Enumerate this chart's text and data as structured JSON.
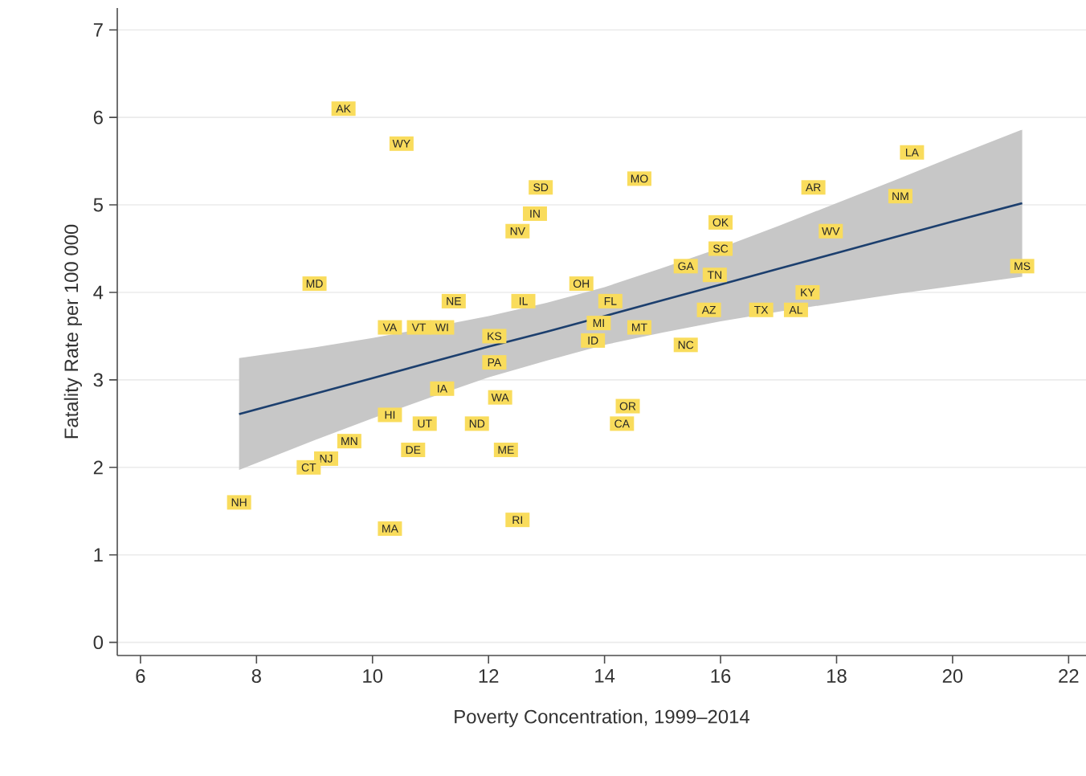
{
  "chart_data": {
    "type": "scatter",
    "xlabel": "Poverty Concentration, 1999–2014",
    "ylabel": "Fatality Rate per 100 000",
    "xlim": [
      5.6,
      22.3
    ],
    "xticks": [
      6,
      8,
      10,
      12,
      14,
      16,
      18,
      20,
      22
    ],
    "ylim": [
      -0.15,
      7.25
    ],
    "yticks": [
      0,
      1,
      2,
      3,
      4,
      5,
      6,
      7
    ],
    "grid": "y",
    "series": [
      {
        "color": "#f9dc5c",
        "x": [
          9.5,
          10.5,
          12.9,
          12.8,
          12.5,
          9.0,
          11.4,
          12.6,
          13.6,
          10.3,
          10.8,
          11.2,
          12.1,
          12.1,
          11.2,
          12.2,
          10.3,
          10.9,
          11.8,
          12.3,
          10.7,
          9.6,
          9.2,
          8.9,
          7.7,
          10.3,
          12.5,
          14.6,
          14.1,
          13.9,
          13.8,
          14.6,
          15.4,
          15.4,
          16.0,
          16.0,
          15.9,
          15.8,
          16.7,
          17.3,
          17.5,
          17.9,
          17.6,
          19.3,
          19.1,
          21.2,
          14.4,
          14.3
        ],
        "values": [
          6.1,
          5.7,
          5.2,
          4.9,
          4.7,
          4.1,
          3.9,
          3.9,
          4.1,
          3.6,
          3.6,
          3.6,
          3.5,
          3.2,
          2.9,
          2.8,
          2.6,
          2.5,
          2.5,
          2.2,
          2.2,
          2.3,
          2.1,
          2.0,
          1.6,
          1.3,
          1.4,
          5.3,
          3.9,
          3.65,
          3.45,
          3.6,
          3.4,
          4.3,
          4.8,
          4.5,
          4.2,
          3.8,
          3.8,
          3.8,
          4.0,
          4.7,
          5.2,
          5.6,
          5.1,
          4.3,
          2.7,
          2.5
        ],
        "value_labels": [
          "AK",
          "WY",
          "SD",
          "IN",
          "NV",
          "MD",
          "NE",
          "IL",
          "OH",
          "VA",
          "VT",
          "WI",
          "KS",
          "PA",
          "IA",
          "WA",
          "HI",
          "UT",
          "ND",
          "ME",
          "DE",
          "MN",
          "NJ",
          "CT",
          "NH",
          "MA",
          "RI",
          "MO",
          "FL",
          "MI",
          "ID",
          "MT",
          "NC",
          "GA",
          "OK",
          "SC",
          "TN",
          "AZ",
          "TX",
          "AL",
          "KY",
          "WV",
          "AR",
          "LA",
          "NM",
          "MS",
          "OR",
          "CA"
        ]
      },
      {
        "type": "line",
        "color": "#1c3f6e",
        "x": [
          7.7,
          9,
          10,
          11,
          12,
          13,
          14,
          15,
          16,
          17,
          18,
          19,
          20,
          21.2
        ],
        "values": [
          2.61,
          2.84,
          3.02,
          3.2,
          3.38,
          3.55,
          3.73,
          3.91,
          4.09,
          4.27,
          4.45,
          4.63,
          4.81,
          5.02
        ],
        "lower": [
          1.97,
          2.31,
          2.56,
          2.8,
          3.03,
          3.22,
          3.4,
          3.54,
          3.67,
          3.78,
          3.88,
          3.98,
          4.07,
          4.18
        ],
        "upper": [
          3.25,
          3.37,
          3.48,
          3.6,
          3.73,
          3.88,
          4.06,
          4.28,
          4.51,
          4.76,
          5.02,
          5.28,
          5.55,
          5.86
        ]
      }
    ]
  }
}
